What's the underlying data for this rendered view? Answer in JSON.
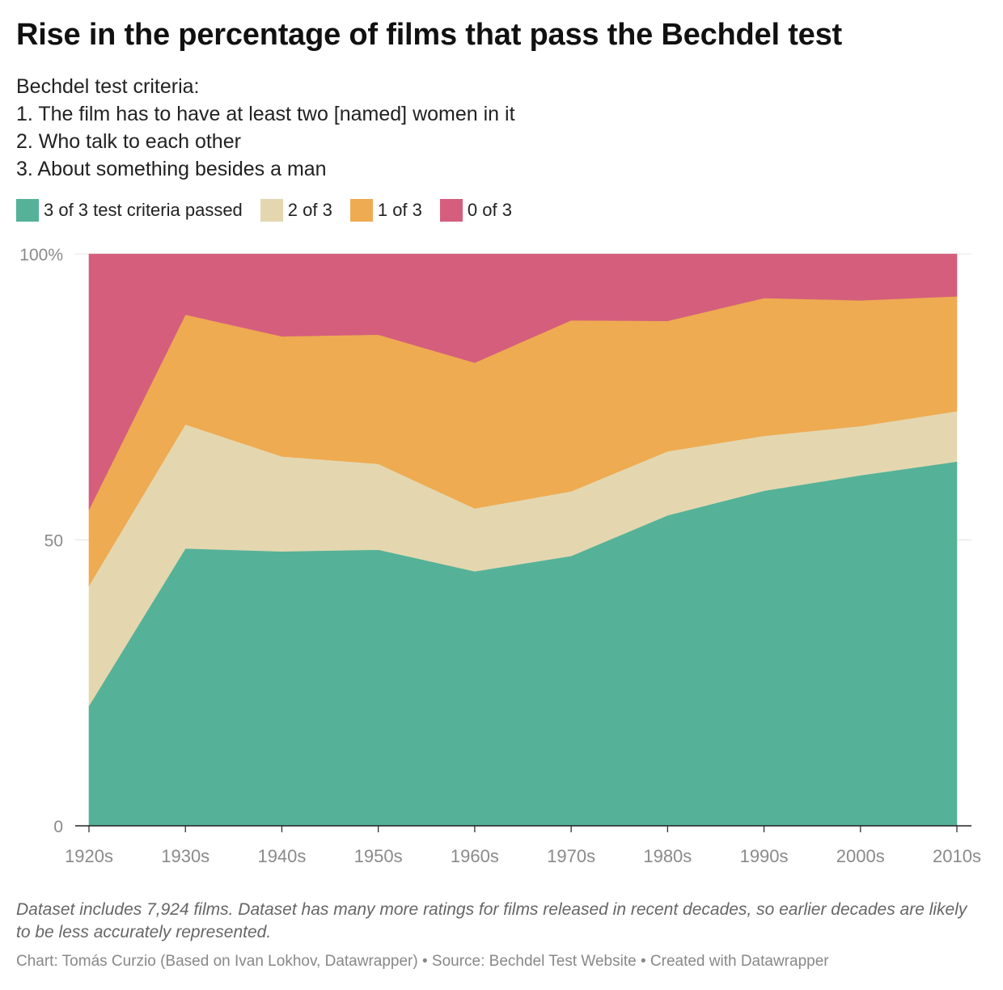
{
  "title": "Rise in the percentage of films that pass the Bechdel test",
  "subtitle_lines": [
    "Bechdel test criteria:",
    "1. The film has to have at least two [named] women in it",
    "2. Who talk to each other",
    "3. About something besides a man"
  ],
  "notes": "Dataset includes 7,924 films. Dataset has many more ratings for films released in recent decades, so earlier decades are likely to be less accurately represented.",
  "credits": "Chart: Tomás Curzio (Based on Ivan Lokhov, Datawrapper) • Source: Bechdel Test Website • Created with Datawrapper",
  "chart_data": {
    "type": "area",
    "stacked": true,
    "percent": true,
    "categories": [
      "1920s",
      "1930s",
      "1940s",
      "1950s",
      "1960s",
      "1970s",
      "1980s",
      "1990s",
      "2000s",
      "2010s"
    ],
    "series": [
      {
        "name": "3 of 3 test criteria passed",
        "color": "#55b298",
        "values": [
          21.0,
          48.5,
          48.0,
          48.3,
          44.5,
          47.2,
          54.3,
          58.6,
          61.3,
          63.7
        ]
      },
      {
        "name": "2 of 3",
        "color": "#e4d7b0",
        "values": [
          21.0,
          21.7,
          16.6,
          15.0,
          11.0,
          11.3,
          11.2,
          9.6,
          8.6,
          8.8
        ]
      },
      {
        "name": "1 of 3",
        "color": "#eeab52",
        "values": [
          13.3,
          19.2,
          21.0,
          22.6,
          25.5,
          29.9,
          22.8,
          24.1,
          22.0,
          20.1
        ]
      },
      {
        "name": "0 of 3",
        "color": "#d55e7d",
        "values": [
          44.7,
          10.6,
          14.4,
          14.1,
          19.0,
          11.6,
          11.7,
          7.7,
          8.1,
          7.4
        ]
      }
    ],
    "y_ticks": [
      {
        "value": 100,
        "label": "100%"
      },
      {
        "value": 50,
        "label": "50"
      },
      {
        "value": 0,
        "label": "0"
      }
    ],
    "ylim": [
      0,
      100
    ],
    "grid": true,
    "legend_position": "top-left"
  }
}
